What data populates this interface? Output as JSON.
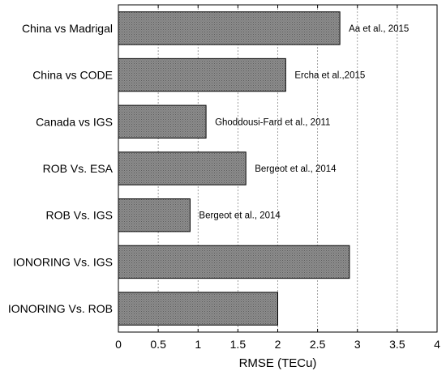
{
  "chart_data": {
    "type": "bar",
    "orientation": "horizontal",
    "categories": [
      "China vs Madrigal",
      "China vs CODE",
      "Canada vs IGS",
      "ROB Vs. ESA",
      "ROB Vs. IGS",
      "IONORING Vs. IGS",
      "IONORING Vs. ROB"
    ],
    "values": [
      2.78,
      2.1,
      1.1,
      1.6,
      0.9,
      2.9,
      2.0
    ],
    "annotations": [
      "Aa et al., 2015",
      "Ercha et al.,2015",
      "Ghoddousi-Fard et al., 2011",
      "Bergeot et al., 2014",
      "Bergeot et al., 2014",
      "",
      ""
    ],
    "xlabel": "RMSE (TECu)",
    "ylabel": "",
    "title": "",
    "xlim": [
      0,
      4
    ],
    "xticks": [
      0,
      0.5,
      1,
      1.5,
      2,
      2.5,
      3,
      3.5,
      4
    ],
    "xtick_labels": [
      "0",
      "0.5",
      "1",
      "1.5",
      "2",
      "2.5",
      "3",
      "3.5",
      "4"
    ],
    "grid": "vertical dashed",
    "bar_color": "#7a7a7a"
  }
}
